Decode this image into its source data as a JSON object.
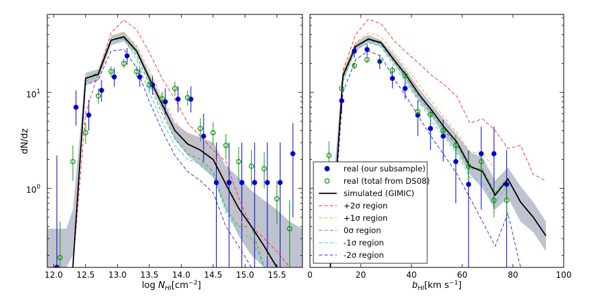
{
  "figure": {
    "ylabel": "dN/dz",
    "ytick_labels": [
      "10^0",
      "10^1"
    ]
  },
  "legend": {
    "location": "lower-left of right panel",
    "entries": [
      {
        "label": "real (our subsample)",
        "style": "marker",
        "color": "#0000cc",
        "fill": true
      },
      {
        "label": "real (total from DS08)",
        "style": "marker",
        "color": "#119911",
        "fill": false
      },
      {
        "label": "simulated (GIMIC)",
        "style": "line",
        "color": "#000000",
        "dash": ""
      },
      {
        "label": "+2σ region",
        "style": "line",
        "color": "#ff3333",
        "dash": "5,3"
      },
      {
        "label": "+1σ region",
        "style": "line",
        "color": "#ffaa33",
        "dash": "5,3"
      },
      {
        "label": "0σ region",
        "style": "line",
        "color": "#33aa33",
        "dash": "5,3"
      },
      {
        "label": "-1σ region",
        "style": "line",
        "color": "#33cccc",
        "dash": "5,3"
      },
      {
        "label": "-2σ region",
        "style": "line",
        "color": "#3333cc",
        "dash": "5,3"
      }
    ]
  },
  "chart_data": [
    {
      "type": "line",
      "panel": "left",
      "xlabel": "log N_HI[cm^-2]",
      "ylabel": "dN/dz",
      "xlim": [
        11.9,
        15.9
      ],
      "ylim_log": [
        0.15,
        65
      ],
      "xticks": [
        12.0,
        12.5,
        13.0,
        13.5,
        14.0,
        14.5,
        15.0,
        15.5
      ],
      "xtick_labels": [
        "12.0",
        "12.5",
        "13.0",
        "13.5",
        "14.0",
        "14.5",
        "15.0",
        "15.5"
      ],
      "band": {
        "x": [
          11.9,
          12.2,
          12.3,
          12.5,
          12.7,
          12.9,
          13.1,
          13.3,
          13.5,
          13.7,
          13.9,
          14.1,
          14.3,
          14.5,
          14.7,
          14.9,
          15.1,
          15.3,
          15.5,
          15.7,
          15.9
        ],
        "lower": [
          0.15,
          0.15,
          0.2,
          12,
          13.5,
          31,
          34,
          25,
          12.5,
          6.5,
          3.2,
          2.2,
          1.7,
          1.3,
          0.6,
          0.32,
          0.2,
          0.15,
          0.15,
          0.15,
          0.15
        ],
        "upper": [
          0.38,
          0.38,
          0.6,
          16,
          17.5,
          39,
          43,
          30,
          16,
          8.5,
          4.8,
          3.8,
          3.4,
          3.0,
          1.7,
          1.3,
          0.95,
          0.75,
          0.6,
          0.45,
          0.38
        ]
      },
      "series": [
        {
          "name": "simulated (GIMIC)",
          "color": "#000000",
          "dash": "",
          "width": 1.8,
          "x": [
            12.3,
            12.5,
            12.7,
            12.9,
            13.1,
            13.3,
            13.5,
            13.7,
            13.9,
            14.1,
            14.3,
            14.5,
            14.7,
            14.9,
            15.1,
            15.3,
            15.5
          ],
          "y": [
            0.15,
            14,
            15.5,
            35,
            38,
            27,
            14,
            7.5,
            4,
            2.9,
            2.5,
            2.0,
            1.1,
            0.62,
            0.4,
            0.25,
            0.15
          ]
        },
        {
          "name": "+2σ region",
          "color": "#ff3333",
          "dash": "5,3",
          "width": 1,
          "x": [
            12.3,
            12.5,
            12.7,
            12.9,
            13.1,
            13.3,
            13.5,
            13.7,
            13.9,
            14.1,
            14.3,
            14.5,
            14.7,
            14.9,
            15.1,
            15.3,
            15.5,
            15.7
          ],
          "y": [
            0.15,
            6,
            16,
            42,
            57,
            45,
            26,
            14,
            8.5,
            4.8,
            3.5,
            2.5,
            1.9,
            0.8,
            0.4,
            0.3,
            0.22,
            0.15
          ]
        },
        {
          "name": "+1σ region",
          "color": "#ffaa33",
          "dash": "5,3",
          "width": 1,
          "x": [
            12.3,
            12.5,
            12.7,
            12.9,
            13.1,
            13.3,
            13.5,
            13.7,
            13.9,
            14.1,
            14.3,
            14.5,
            14.7,
            14.9,
            15.1,
            15.3,
            15.5
          ],
          "y": [
            0.15,
            13,
            16.5,
            36,
            42,
            31,
            17,
            9,
            5,
            3.5,
            2.6,
            2.2,
            1.2,
            0.5,
            0.3,
            0.22,
            0.15
          ]
        },
        {
          "name": "0σ region",
          "color": "#33aa33",
          "dash": "5,3",
          "width": 1,
          "x": [
            12.3,
            12.5,
            12.7,
            12.9,
            13.1,
            13.3,
            13.5,
            13.7,
            13.9,
            14.1,
            14.3,
            14.5,
            14.7,
            14.9,
            15.1,
            15.3
          ],
          "y": [
            0.15,
            14,
            16,
            35,
            37,
            24,
            12,
            6,
            3.3,
            2.3,
            2.0,
            1.5,
            0.6,
            0.4,
            0.4,
            0.15
          ]
        },
        {
          "name": "-1σ region",
          "color": "#33cccc",
          "dash": "5,3",
          "width": 1,
          "x": [
            12.3,
            12.5,
            12.7,
            12.9,
            13.1,
            13.3,
            13.5,
            13.7,
            13.9,
            14.1,
            14.3,
            14.5,
            14.7,
            14.9,
            15.1,
            15.3
          ],
          "y": [
            0.15,
            13,
            15,
            34,
            36,
            22,
            10,
            5,
            2.8,
            2.0,
            1.8,
            1.4,
            0.55,
            0.35,
            0.3,
            0.15
          ]
        },
        {
          "name": "-2σ region",
          "color": "#3333cc",
          "dash": "5,3",
          "width": 1,
          "x": [
            12.3,
            12.5,
            12.7,
            12.9,
            13.1,
            13.3,
            13.5,
            13.7,
            13.9,
            14.1,
            14.3,
            14.5,
            14.7,
            14.9,
            15.1
          ],
          "y": [
            0.15,
            12,
            13.5,
            27,
            28,
            18,
            8,
            4,
            2.2,
            1.5,
            1.2,
            0.9,
            0.4,
            0.25,
            0.15
          ]
        }
      ],
      "points_blue": {
        "name": "real (our subsample)",
        "color": "#0000cc",
        "x": [
          12.05,
          12.35,
          12.55,
          12.75,
          12.95,
          13.15,
          13.35,
          13.55,
          13.75,
          13.95,
          14.15,
          14.35,
          14.55,
          14.75,
          14.95,
          15.15,
          15.35,
          15.55,
          15.75
        ],
        "y": [
          0.15,
          7,
          5.8,
          10.5,
          14.5,
          24,
          14.5,
          12,
          8,
          8.5,
          8.5,
          3.5,
          1.15,
          1.15,
          1.15,
          1.15,
          1.15,
          1.15,
          2.3
        ],
        "ylo": [
          0.15,
          4.5,
          4.0,
          8.0,
          11.5,
          19.5,
          11.5,
          9.5,
          5.8,
          6.2,
          6.2,
          1.9,
          0.15,
          0.15,
          0.15,
          0.15,
          0.15,
          0.15,
          0.5
        ],
        "yhi": [
          2.2,
          10.5,
          8.4,
          13.5,
          18.0,
          29.0,
          18.0,
          15.0,
          11.0,
          11.6,
          11.6,
          6.0,
          3.0,
          3.0,
          3.0,
          3.0,
          3.0,
          3.0,
          4.8
        ]
      },
      "points_green": {
        "name": "real (total from DS08)",
        "color": "#119911",
        "x": [
          12.1,
          12.3,
          12.5,
          12.7,
          12.9,
          13.1,
          13.3,
          13.5,
          13.7,
          13.9,
          14.1,
          14.3,
          14.5,
          14.7,
          14.9,
          15.1,
          15.3,
          15.5,
          15.7
        ],
        "y": [
          0.19,
          1.9,
          3.8,
          9.2,
          16.5,
          20,
          16.5,
          12,
          8.6,
          11,
          8.8,
          4.2,
          3.8,
          2.8,
          1.9,
          1.7,
          1.6,
          0.78,
          0.38
        ],
        "ylo": [
          0.15,
          1.2,
          2.9,
          7.6,
          14.4,
          17.9,
          14.4,
          10.3,
          7.1,
          9.2,
          7.3,
          3.1,
          2.8,
          2.0,
          1.2,
          1.05,
          1.0,
          0.42,
          0.15
        ],
        "yhi": [
          0.45,
          2.8,
          4.8,
          11,
          18.8,
          22.3,
          18.8,
          13.9,
          10.2,
          13,
          10.5,
          5.4,
          4.9,
          3.7,
          2.7,
          2.5,
          2.4,
          1.2,
          0.75
        ]
      }
    },
    {
      "type": "line",
      "panel": "right",
      "xlabel": "b_HI[km s^-1]",
      "ylabel": "dN/dz",
      "xlim": [
        0,
        100
      ],
      "ylim_log": [
        0.15,
        65
      ],
      "xticks": [
        0,
        20,
        40,
        60,
        80,
        100
      ],
      "xtick_labels": [
        "0",
        "20",
        "40",
        "60",
        "80",
        "100"
      ],
      "band": {
        "x": [
          8,
          13,
          18,
          23,
          28,
          33,
          38,
          43,
          48,
          53,
          58,
          63,
          68,
          73,
          78,
          83,
          88,
          93
        ],
        "lower": [
          0.15,
          13,
          27,
          33,
          30,
          20,
          13,
          8,
          5.5,
          3.5,
          2.4,
          1.4,
          1.0,
          0.6,
          0.8,
          0.45,
          0.35,
          0.22
        ],
        "upper": [
          0.5,
          17,
          33,
          40,
          35,
          25,
          17,
          11,
          7.5,
          5.2,
          3.6,
          2.4,
          2.1,
          1.2,
          1.65,
          1.05,
          0.72,
          0.45
        ]
      },
      "series": [
        {
          "name": "simulated (GIMIC)",
          "color": "#000000",
          "dash": "",
          "width": 1.8,
          "x": [
            8,
            13,
            18,
            23,
            28,
            33,
            38,
            43,
            48,
            53,
            58,
            63,
            68,
            73,
            78,
            83,
            88,
            93
          ],
          "y": [
            0.15,
            15,
            30,
            36,
            33,
            22,
            15,
            9.5,
            6.5,
            4.3,
            3.0,
            1.7,
            1.5,
            0.85,
            1.25,
            0.72,
            0.5,
            0.32
          ]
        },
        {
          "name": "+2σ region",
          "color": "#ff3333",
          "dash": "5,3",
          "width": 1,
          "x": [
            8,
            13,
            18,
            23,
            28,
            33,
            38,
            43,
            48,
            53,
            58,
            63,
            68,
            73,
            78,
            83,
            88,
            93
          ],
          "y": [
            0.15,
            17,
            40,
            58,
            52,
            35,
            26,
            20,
            15,
            12,
            9,
            4.8,
            5.3,
            4.0,
            2.6,
            2.8,
            1.4,
            1.2
          ]
        },
        {
          "name": "+1σ region",
          "color": "#ffaa33",
          "dash": "5,3",
          "width": 1,
          "x": [
            8,
            13,
            18,
            23,
            28,
            33,
            38,
            43,
            48,
            53,
            58,
            63,
            68,
            73
          ],
          "y": [
            0.15,
            16,
            33,
            42,
            38,
            26,
            18,
            12,
            8,
            5.5,
            3.8,
            2.4,
            2.3,
            1.6
          ]
        },
        {
          "name": "0σ region",
          "color": "#33aa33",
          "dash": "5,3",
          "width": 1,
          "x": [
            8,
            13,
            18,
            23,
            28,
            33,
            38,
            43,
            48,
            53,
            58,
            63,
            68,
            73,
            78
          ],
          "y": [
            0.15,
            14,
            30,
            35,
            32,
            21,
            14,
            9,
            6,
            4,
            2.8,
            1.6,
            1.6,
            0.9,
            1.3
          ]
        },
        {
          "name": "-1σ region",
          "color": "#33cccc",
          "dash": "5,3",
          "width": 1,
          "x": [
            8,
            13,
            18,
            23,
            28,
            33,
            38,
            43,
            48,
            53,
            58,
            63,
            68,
            73,
            78
          ],
          "y": [
            0.15,
            13,
            28,
            33,
            30,
            19,
            12.5,
            8,
            5,
            3.4,
            2.3,
            1.3,
            1.2,
            0.7,
            1.1
          ]
        },
        {
          "name": "-2σ region",
          "color": "#3333cc",
          "dash": "5,3",
          "width": 1,
          "x": [
            8,
            13,
            18,
            23,
            28,
            33,
            38,
            43,
            48,
            53,
            58,
            63,
            68,
            73,
            78,
            83
          ],
          "y": [
            0.15,
            10,
            22,
            27,
            24,
            14,
            9,
            5.5,
            3.4,
            2.2,
            1.4,
            0.8,
            0.45,
            0.25,
            0.55,
            0.15
          ]
        }
      ],
      "points_blue": {
        "name": "real (our subsample)",
        "color": "#0000cc",
        "x": [
          12.5,
          17.5,
          22.5,
          27.5,
          32.5,
          37.5,
          42.5,
          47.5,
          52.5,
          57.5,
          62.5,
          67.5,
          72.5,
          77.5
        ],
        "y": [
          8.2,
          27,
          28,
          21,
          14,
          11,
          5.8,
          4.2,
          3.5,
          1.9,
          1.1,
          2.3,
          2.3,
          1.1
        ],
        "ylo": [
          6.0,
          23,
          24,
          17.5,
          11,
          8.5,
          3.5,
          2.5,
          1.9,
          0.7,
          0.15,
          0.6,
          0.6,
          0.15
        ],
        "yhi": [
          10.5,
          31,
          32,
          24.5,
          17,
          13.5,
          8.2,
          6.2,
          5.2,
          3.2,
          2.5,
          4.4,
          4.4,
          2.5
        ]
      },
      "points_green": {
        "name": "real (total from DS08)",
        "color": "#119911",
        "x": [
          7.5,
          12.5,
          17.5,
          22.5,
          27.5,
          32.5,
          37.5,
          42.5,
          47.5,
          52.5,
          57.5,
          62.5,
          67.5,
          72.5,
          77.5
        ],
        "y": [
          2.2,
          11,
          19,
          22,
          21,
          17,
          15,
          6.3,
          5.9,
          4.0,
          2.8,
          1.7,
          1.9,
          0.75,
          0.75
        ],
        "ylo": [
          1.4,
          9.2,
          17.5,
          20.2,
          19.3,
          15.4,
          13.4,
          5.3,
          4.9,
          3.2,
          2.1,
          1.2,
          1.3,
          0.5,
          0.5
        ],
        "yhi": [
          3.1,
          12.9,
          20.6,
          23.8,
          22.8,
          18.7,
          16.7,
          7.4,
          7.0,
          4.9,
          3.6,
          2.3,
          2.6,
          1.05,
          1.05
        ]
      }
    }
  ]
}
